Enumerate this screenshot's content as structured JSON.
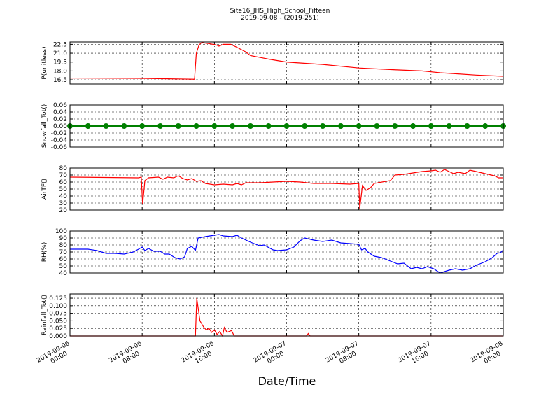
{
  "chart_data": [
    {
      "type": "line",
      "title": "Site16_JHS_High_School_Fifteen",
      "subtitle": "2019-09-08 - (2019-251)",
      "ylabel": "P(unitless)",
      "color": "#ff0000",
      "grid": true,
      "xlim": [
        "2019-09-06 00:00",
        "2019-09-08 00:00"
      ],
      "xticks": [
        "2019-09-06 00:00",
        "2019-09-06 08:00",
        "2019-09-06 16:00",
        "2019-09-07 00:00",
        "2019-09-07 08:00",
        "2019-09-07 16:00",
        "2019-09-08 00:00"
      ],
      "ylim": [
        15.8,
        22.9
      ],
      "yticks": [
        16.5,
        {
          "value": 18,
          "label": "18.0"
        },
        19.5,
        {
          "value": 21,
          "label": "21.0"
        },
        22.5
      ],
      "x": [
        "2019-09-06 00:00",
        "2019-09-06 08:00",
        "2019-09-06 13:48",
        "2019-09-06 14:00",
        "2019-09-06 14:18",
        "2019-09-06 14:36",
        "2019-09-06 15:30",
        "2019-09-06 16:12",
        "2019-09-06 16:30",
        "2019-09-06 17:00",
        "2019-09-06 17:48",
        "2019-09-06 18:30",
        "2019-09-06 19:30",
        "2019-09-06 20:00",
        "2019-09-06 21:00",
        "2019-09-06 22:00",
        "2019-09-07 00:00",
        "2019-09-07 04:00",
        "2019-09-07 08:00",
        "2019-09-07 12:00",
        "2019-09-07 15:00",
        "2019-09-07 17:00",
        "2019-09-07 19:00",
        "2019-09-07 21:00",
        "2019-09-08 00:00"
      ],
      "values": [
        16.8,
        16.75,
        16.6,
        21.0,
        22.4,
        22.8,
        22.6,
        22.4,
        22.2,
        22.5,
        22.5,
        22.0,
        21.2,
        20.6,
        20.3,
        20.0,
        19.5,
        19.1,
        18.5,
        18.2,
        18.0,
        17.7,
        17.5,
        17.3,
        17.1
      ]
    },
    {
      "type": "line",
      "ylabel": "Snowfall_Tot()",
      "color": "#008000",
      "marker": "o",
      "grid": true,
      "xlim": [
        "2019-09-06 00:00",
        "2019-09-08 00:00"
      ],
      "xticks": [
        "2019-09-06 00:00",
        "2019-09-06 08:00",
        "2019-09-06 16:00",
        "2019-09-07 00:00",
        "2019-09-07 08:00",
        "2019-09-07 16:00",
        "2019-09-08 00:00"
      ],
      "ylim": [
        -0.06,
        0.06
      ],
      "yticks": [
        -0.06,
        -0.04,
        -0.02,
        {
          "value": 0,
          "label": "0.00"
        },
        0.02,
        0.04,
        0.06
      ],
      "x": [
        "2019-09-06 00:00",
        "2019-09-06 02:00",
        "2019-09-06 04:00",
        "2019-09-06 06:00",
        "2019-09-06 08:00",
        "2019-09-06 10:00",
        "2019-09-06 12:00",
        "2019-09-06 14:00",
        "2019-09-06 16:00",
        "2019-09-06 18:00",
        "2019-09-06 20:00",
        "2019-09-06 22:00",
        "2019-09-07 00:00",
        "2019-09-07 02:00",
        "2019-09-07 04:00",
        "2019-09-07 06:00",
        "2019-09-07 08:00",
        "2019-09-07 10:00",
        "2019-09-07 12:00",
        "2019-09-07 14:00",
        "2019-09-07 16:00",
        "2019-09-07 18:00",
        "2019-09-07 20:00",
        "2019-09-07 22:00",
        "2019-09-08 00:00"
      ],
      "values": [
        0,
        0,
        0,
        0,
        0,
        0,
        0,
        0,
        0,
        0,
        0,
        0,
        0,
        0,
        0,
        0,
        0,
        0,
        0,
        0,
        0,
        0,
        0,
        0,
        0
      ]
    },
    {
      "type": "line",
      "ylabel": "AirTF()",
      "color": "#ff0000",
      "grid": true,
      "xlim": [
        "2019-09-06 00:00",
        "2019-09-08 00:00"
      ],
      "xticks": [
        "2019-09-06 00:00",
        "2019-09-06 08:00",
        "2019-09-06 16:00",
        "2019-09-07 00:00",
        "2019-09-07 08:00",
        "2019-09-07 16:00",
        "2019-09-08 00:00"
      ],
      "ylim": [
        20,
        80
      ],
      "yticks": [
        20,
        30,
        40,
        50,
        60,
        70,
        80
      ],
      "x": [
        "2019-09-06 00:00",
        "2019-09-06 07:36",
        "2019-09-06 07:54",
        "2019-09-06 08:03",
        "2019-09-06 08:18",
        "2019-09-06 08:42",
        "2019-09-06 09:48",
        "2019-09-06 10:18",
        "2019-09-06 10:48",
        "2019-09-06 11:30",
        "2019-09-06 12:00",
        "2019-09-06 12:30",
        "2019-09-06 13:00",
        "2019-09-06 13:30",
        "2019-09-06 14:00",
        "2019-09-06 14:30",
        "2019-09-06 15:00",
        "2019-09-06 16:00",
        "2019-09-06 17:00",
        "2019-09-06 18:00",
        "2019-09-06 18:30",
        "2019-09-06 19:00",
        "2019-09-06 19:30",
        "2019-09-06 21:00",
        "2019-09-06 22:30",
        "2019-09-07 00:00",
        "2019-09-07 01:30",
        "2019-09-07 03:00",
        "2019-09-07 05:00",
        "2019-09-07 07:00",
        "2019-09-07 08:00",
        "2019-09-07 08:06",
        "2019-09-07 08:24",
        "2019-09-07 08:48",
        "2019-09-07 09:18",
        "2019-09-07 09:42",
        "2019-09-07 11:00",
        "2019-09-07 11:30",
        "2019-09-07 12:00",
        "2019-09-07 13:00",
        "2019-09-07 14:00",
        "2019-09-07 15:00",
        "2019-09-07 16:00",
        "2019-09-07 16:30",
        "2019-09-07 17:00",
        "2019-09-07 17:30",
        "2019-09-07 18:30",
        "2019-09-07 19:00",
        "2019-09-07 19:48",
        "2019-09-07 20:18",
        "2019-09-07 21:00",
        "2019-09-07 22:00",
        "2019-09-07 23:00",
        "2019-09-07 23:30",
        "2019-09-08 00:00"
      ],
      "values": [
        67,
        66,
        67,
        28,
        62,
        66,
        67,
        64,
        67,
        66,
        69,
        65,
        63,
        65,
        61,
        62,
        58,
        56,
        57,
        56,
        58,
        56,
        59,
        59,
        60,
        61,
        60,
        58,
        58,
        57,
        58,
        22,
        55,
        48,
        52,
        58,
        61,
        62,
        70,
        71,
        73,
        75,
        76,
        77,
        74,
        78,
        72,
        74,
        72,
        77,
        75,
        72,
        69,
        66,
        66
      ]
    },
    {
      "type": "line",
      "ylabel": "RH(%)",
      "color": "#0000ff",
      "grid": true,
      "xlim": [
        "2019-09-06 00:00",
        "2019-09-08 00:00"
      ],
      "xticks": [
        "2019-09-06 00:00",
        "2019-09-06 08:00",
        "2019-09-06 16:00",
        "2019-09-07 00:00",
        "2019-09-07 08:00",
        "2019-09-07 16:00",
        "2019-09-08 00:00"
      ],
      "ylim": [
        40,
        100
      ],
      "yticks": [
        40,
        50,
        60,
        70,
        80,
        90,
        100
      ],
      "x": [
        "2019-09-06 00:00",
        "2019-09-06 02:00",
        "2019-09-06 03:00",
        "2019-09-06 04:00",
        "2019-09-06 05:00",
        "2019-09-06 06:00",
        "2019-09-06 07:00",
        "2019-09-06 07:36",
        "2019-09-06 08:00",
        "2019-09-06 08:18",
        "2019-09-06 08:42",
        "2019-09-06 09:18",
        "2019-09-06 10:00",
        "2019-09-06 10:30",
        "2019-09-06 11:00",
        "2019-09-06 11:36",
        "2019-09-06 12:12",
        "2019-09-06 12:42",
        "2019-09-06 13:00",
        "2019-09-06 13:30",
        "2019-09-06 13:54",
        "2019-09-06 14:12",
        "2019-09-06 15:00",
        "2019-09-06 16:00",
        "2019-09-06 16:30",
        "2019-09-06 17:00",
        "2019-09-06 18:00",
        "2019-09-06 18:30",
        "2019-09-06 19:00",
        "2019-09-06 20:00",
        "2019-09-06 21:00",
        "2019-09-06 21:30",
        "2019-09-06 22:30",
        "2019-09-06 23:00",
        "2019-09-07 00:00",
        "2019-09-07 00:48",
        "2019-09-07 01:30",
        "2019-09-07 02:00",
        "2019-09-07 03:00",
        "2019-09-07 04:00",
        "2019-09-07 05:00",
        "2019-09-07 06:00",
        "2019-09-07 07:00",
        "2019-09-07 08:00",
        "2019-09-07 08:18",
        "2019-09-07 08:42",
        "2019-09-07 09:00",
        "2019-09-07 09:42",
        "2019-09-07 10:30",
        "2019-09-07 11:30",
        "2019-09-07 12:18",
        "2019-09-07 13:00",
        "2019-09-07 13:48",
        "2019-09-07 14:24",
        "2019-09-07 15:00",
        "2019-09-07 15:36",
        "2019-09-07 16:18",
        "2019-09-07 17:00",
        "2019-09-07 18:00",
        "2019-09-07 18:42",
        "2019-09-07 19:30",
        "2019-09-07 20:18",
        "2019-09-07 21:00",
        "2019-09-07 22:00",
        "2019-09-07 22:48",
        "2019-09-07 23:18",
        "2019-09-07 23:42",
        "2019-09-08 00:00"
      ],
      "values": [
        74,
        74,
        72,
        68,
        68,
        67,
        70,
        74,
        77,
        72,
        75,
        71,
        71,
        67,
        67,
        62,
        60,
        63,
        75,
        78,
        72,
        90,
        92,
        94,
        95,
        93,
        92,
        94,
        90,
        84,
        79,
        80,
        73,
        72,
        73,
        77,
        86,
        90,
        87,
        85,
        87,
        83,
        82,
        81,
        73,
        75,
        70,
        64,
        62,
        57,
        53,
        54,
        46,
        48,
        46,
        49,
        46,
        40,
        44,
        46,
        44,
        46,
        51,
        56,
        62,
        68,
        69,
        73
      ]
    },
    {
      "type": "line",
      "ylabel": "Rainfall_Tot()",
      "xlabel": "Date/Time",
      "color": "#ff0000",
      "grid": true,
      "xlim": [
        "2019-09-06 00:00",
        "2019-09-08 00:00"
      ],
      "xticks": [
        {
          "value": "2019-09-06 00:00",
          "label": [
            "2019-09-06",
            "00:00"
          ]
        },
        {
          "value": "2019-09-06 08:00",
          "label": [
            "2019-09-06",
            "08:00"
          ]
        },
        {
          "value": "2019-09-06 16:00",
          "label": [
            "2019-09-06",
            "16:00"
          ]
        },
        {
          "value": "2019-09-07 00:00",
          "label": [
            "2019-09-07",
            "00:00"
          ]
        },
        {
          "value": "2019-09-07 08:00",
          "label": [
            "2019-09-07",
            "08:00"
          ]
        },
        {
          "value": "2019-09-07 16:00",
          "label": [
            "2019-09-07",
            "16:00"
          ]
        },
        {
          "value": "2019-09-08 00:00",
          "label": [
            "2019-09-08",
            "00:00"
          ]
        }
      ],
      "ylim": [
        0,
        0.139
      ],
      "yticks": [
        {
          "value": 0,
          "label": "0.000"
        },
        0.025,
        {
          "value": 0.05,
          "label": "0.050"
        },
        0.075,
        {
          "value": 0.1,
          "label": "0.100"
        },
        0.125
      ],
      "x": [
        "2019-09-06 00:00",
        "2019-09-06 13:54",
        "2019-09-06 14:03",
        "2019-09-06 14:24",
        "2019-09-06 14:48",
        "2019-09-06 15:06",
        "2019-09-06 15:24",
        "2019-09-06 15:42",
        "2019-09-06 16:00",
        "2019-09-06 16:18",
        "2019-09-06 16:36",
        "2019-09-06 16:54",
        "2019-09-06 17:06",
        "2019-09-06 17:24",
        "2019-09-06 17:54",
        "2019-09-06 18:12",
        "2019-09-07 02:12",
        "2019-09-07 02:24",
        "2019-09-07 02:36",
        "2019-09-08 00:00"
      ],
      "values": [
        0,
        0,
        0.125,
        0.05,
        0.03,
        0.02,
        0.025,
        0.012,
        0.02,
        0.005,
        0.015,
        0,
        0.028,
        0.012,
        0.018,
        0,
        0,
        0.008,
        0,
        0
      ]
    }
  ]
}
